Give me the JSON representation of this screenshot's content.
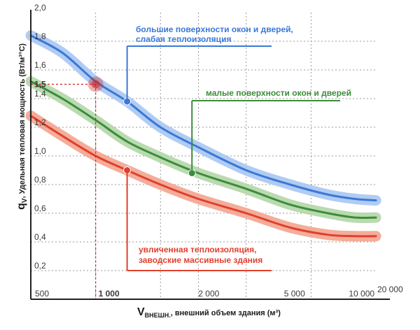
{
  "chart_data": {
    "type": "line",
    "y_axis": {
      "label_main": "q",
      "label_sub": "V",
      "label_rest": ", Удельная тепловая мощность (Вт/м³°C)",
      "range": [
        0,
        2.0
      ],
      "ticks": [
        "2,0",
        "1,8",
        "1,6",
        "1,4",
        "1,2",
        "1,0",
        "0,8",
        "0,6",
        "0,4",
        "0,2"
      ],
      "tick_values": [
        2.0,
        1.8,
        1.6,
        1.4,
        1.2,
        1.0,
        0.8,
        0.6,
        0.4,
        0.2
      ],
      "highlight_label": "1,5",
      "highlight_value": 1.5
    },
    "x_axis": {
      "label_main": "V",
      "label_sub": "ВНЕШН.",
      "label_rest": ", внешний объем здания (м³)",
      "ticks": [
        "500",
        "2 000",
        "5 000",
        "10 000",
        "20 000"
      ],
      "tick_values": [
        500,
        2000,
        5000,
        10000,
        20000
      ],
      "highlight_label": "1 000",
      "highlight_value": 1000,
      "range": [
        500,
        20000
      ],
      "scale": "log"
    },
    "series": [
      {
        "name": "большие поверхности окон и дверей, слабая теплоизоляция",
        "label_lines": [
          "большие поверхности окон и дверей,",
          "слабая теплоизоляция"
        ],
        "color": "#3a78d8",
        "band_color": "#a9c6f1",
        "x": [
          500,
          700,
          1000,
          1400,
          2000,
          3000,
          5000,
          8000,
          12000,
          16000,
          20000
        ],
        "y": [
          1.84,
          1.72,
          1.52,
          1.38,
          1.2,
          1.06,
          0.9,
          0.8,
          0.73,
          0.7,
          0.69
        ],
        "marker": {
          "x": 1400,
          "y": 1.38
        }
      },
      {
        "name": "малые поверхности окон и дверей",
        "label_lines": [
          "малые поверхности окон и дверей"
        ],
        "color": "#3c8c3c",
        "band_color": "#b3d6a7",
        "x": [
          500,
          700,
          1000,
          1400,
          2000,
          3000,
          5000,
          8000,
          12000,
          16000,
          20000
        ],
        "y": [
          1.52,
          1.4,
          1.25,
          1.1,
          0.99,
          0.88,
          0.77,
          0.66,
          0.6,
          0.57,
          0.57
        ],
        "marker": {
          "x": 2800,
          "y": 0.88
        }
      },
      {
        "name": "увличенная теплоизоляция, заводские массивные здания",
        "label_lines": [
          "увличенная теплоизоляция,",
          "заводские массивные здания"
        ],
        "color": "#e0402c",
        "band_color": "#f2a48f",
        "x": [
          500,
          700,
          1000,
          1400,
          2000,
          3000,
          5000,
          8000,
          12000,
          16000,
          20000
        ],
        "y": [
          1.28,
          1.14,
          1.0,
          0.9,
          0.8,
          0.7,
          0.6,
          0.5,
          0.45,
          0.44,
          0.44
        ],
        "marker": {
          "x": 1400,
          "y": 0.9
        }
      }
    ],
    "grid": true,
    "reference_point": {
      "x": 1000,
      "y": 1.5,
      "color": "#d42020"
    }
  }
}
